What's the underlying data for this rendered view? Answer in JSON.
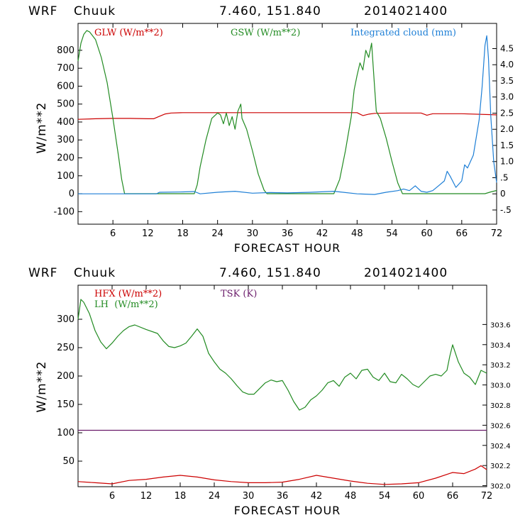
{
  "panels": [
    {
      "header": {
        "model": "WRF",
        "station": "Chuuk",
        "coords": "7.460, 151.840",
        "init": "2014021400"
      },
      "xlabel": "FORECAST HOUR",
      "ylabel": "W/m**2",
      "legend": [
        {
          "text": "GLW (W/m**2)",
          "color": "#cc0000"
        },
        {
          "text": "GSW (W/m**2)",
          "color": "#228b22"
        },
        {
          "text": "Integrated cloud (mm)",
          "color": "#1e7fd6"
        }
      ]
    },
    {
      "header": {
        "model": "WRF",
        "station": "Chuuk",
        "coords": "7.460, 151.840",
        "init": "2014021400"
      },
      "xlabel": "FORECAST HOUR",
      "ylabel": "W/m**2",
      "legend": [
        {
          "text": "HFX (W/m**2)",
          "color": "#cc0000"
        },
        {
          "text": "LH  (W/m**2)",
          "color": "#228b22"
        },
        {
          "text": "TSK (K)",
          "color": "#6a1b6a"
        }
      ]
    }
  ],
  "chart_data": [
    {
      "type": "line",
      "xlim": [
        0,
        72
      ],
      "ylim": [
        -170,
        950
      ],
      "y2lim": [
        -0.94,
        5.28
      ],
      "xticks": [
        6,
        12,
        18,
        24,
        30,
        36,
        42,
        48,
        54,
        60,
        66,
        72
      ],
      "yticks": [
        -100,
        0,
        100,
        200,
        300,
        400,
        500,
        600,
        700,
        800
      ],
      "y2ticks": [
        "-.5",
        "0",
        ".5",
        "1.0",
        "1.5",
        "2.0",
        "2.5",
        "3.0",
        "3.5",
        "4.0",
        "4.5"
      ],
      "y2tick_values": [
        -0.5,
        0,
        0.5,
        1.0,
        1.5,
        2.0,
        2.5,
        3.0,
        3.5,
        4.0,
        4.5
      ],
      "series": [
        {
          "name": "GLW (W/m**2)",
          "color": "#cc0000",
          "axis": "left",
          "points": [
            [
              0,
              415
            ],
            [
              3,
              418
            ],
            [
              6,
              420
            ],
            [
              9,
              420
            ],
            [
              12,
              418
            ],
            [
              13,
              418
            ],
            [
              14,
              432
            ],
            [
              15,
              445
            ],
            [
              16,
              450
            ],
            [
              18,
              452
            ],
            [
              24,
              452
            ],
            [
              30,
              452
            ],
            [
              36,
              452
            ],
            [
              42,
              452
            ],
            [
              48,
              452
            ],
            [
              49,
              436
            ],
            [
              50,
              444
            ],
            [
              51,
              448
            ],
            [
              54,
              450
            ],
            [
              57,
              450
            ],
            [
              59,
              450
            ],
            [
              60,
              438
            ],
            [
              61,
              446
            ],
            [
              66,
              446
            ],
            [
              72,
              440
            ]
          ]
        },
        {
          "name": "GSW (W/m**2)",
          "color": "#228b22",
          "axis": "left",
          "points": [
            [
              0,
              740
            ],
            [
              0.5,
              840
            ],
            [
              1,
              890
            ],
            [
              1.5,
              910
            ],
            [
              2,
              902
            ],
            [
              3,
              860
            ],
            [
              4,
              760
            ],
            [
              5,
              620
            ],
            [
              6,
              420
            ],
            [
              7,
              200
            ],
            [
              7.5,
              80
            ],
            [
              8,
              0
            ],
            [
              20,
              0
            ],
            [
              20.5,
              50
            ],
            [
              21,
              150
            ],
            [
              22,
              300
            ],
            [
              23,
              420
            ],
            [
              24,
              450
            ],
            [
              24.5,
              440
            ],
            [
              25,
              390
            ],
            [
              25.5,
              450
            ],
            [
              26,
              380
            ],
            [
              26.5,
              430
            ],
            [
              27,
              360
            ],
            [
              27.5,
              460
            ],
            [
              28,
              500
            ],
            [
              28.2,
              420
            ],
            [
              29,
              360
            ],
            [
              30,
              240
            ],
            [
              31,
              110
            ],
            [
              32,
              20
            ],
            [
              32.5,
              0
            ],
            [
              44,
              0
            ],
            [
              45,
              80
            ],
            [
              46,
              240
            ],
            [
              47,
              430
            ],
            [
              47.5,
              580
            ],
            [
              48,
              660
            ],
            [
              48.5,
              730
            ],
            [
              49,
              690
            ],
            [
              49.5,
              800
            ],
            [
              50,
              760
            ],
            [
              50.5,
              840
            ],
            [
              51,
              600
            ],
            [
              51.3,
              460
            ],
            [
              52,
              420
            ],
            [
              53,
              310
            ],
            [
              54,
              180
            ],
            [
              55,
              60
            ],
            [
              55.8,
              0
            ],
            [
              70,
              0
            ],
            [
              71,
              10
            ],
            [
              72,
              18
            ]
          ]
        },
        {
          "name": "Integrated cloud (mm)",
          "color": "#1e7fd6",
          "axis": "right",
          "points": [
            [
              0,
              0
            ],
            [
              6,
              0
            ],
            [
              12,
              0
            ],
            [
              13.5,
              0
            ],
            [
              14,
              0.05
            ],
            [
              18,
              0.06
            ],
            [
              20,
              0.07
            ],
            [
              21,
              0
            ],
            [
              24,
              0.05
            ],
            [
              27,
              0.08
            ],
            [
              30,
              0.02
            ],
            [
              33,
              0.04
            ],
            [
              36,
              0.03
            ],
            [
              40,
              0.05
            ],
            [
              44,
              0.08
            ],
            [
              45,
              0.06
            ],
            [
              48,
              0
            ],
            [
              51,
              -0.02
            ],
            [
              53,
              0.05
            ],
            [
              55,
              0.1
            ],
            [
              56,
              0.15
            ],
            [
              57,
              0.1
            ],
            [
              58,
              0.25
            ],
            [
              59,
              0.08
            ],
            [
              60,
              0.05
            ],
            [
              61,
              0.1
            ],
            [
              62,
              0.25
            ],
            [
              63,
              0.4
            ],
            [
              63.5,
              0.7
            ],
            [
              64,
              0.55
            ],
            [
              65,
              0.2
            ],
            [
              66,
              0.4
            ],
            [
              66.5,
              0.9
            ],
            [
              67,
              0.8
            ],
            [
              68,
              1.2
            ],
            [
              69,
              2.3
            ],
            [
              69.5,
              3.3
            ],
            [
              70,
              4.6
            ],
            [
              70.3,
              4.9
            ],
            [
              70.6,
              4.2
            ],
            [
              71,
              2.4
            ],
            [
              71.5,
              1.0
            ],
            [
              72,
              0.35
            ]
          ]
        }
      ]
    },
    {
      "type": "line",
      "xlim": [
        0,
        72
      ],
      "ylim": [
        5,
        360
      ],
      "y2lim": [
        301.99,
        303.99
      ],
      "xticks": [
        6,
        12,
        18,
        24,
        30,
        36,
        42,
        48,
        54,
        60,
        66,
        72
      ],
      "yticks": [
        50,
        100,
        150,
        200,
        250,
        300
      ],
      "y2ticks": [
        "302.0",
        "302.2",
        "302.4",
        "302.6",
        "302.8",
        "303.0",
        "303.2",
        "303.4",
        "303.6"
      ],
      "y2tick_values": [
        302.0,
        302.2,
        302.4,
        302.6,
        302.8,
        303.0,
        303.2,
        303.4,
        303.6
      ],
      "series": [
        {
          "name": "HFX (W/m**2)",
          "color": "#cc0000",
          "axis": "left",
          "points": [
            [
              0,
              14
            ],
            [
              3,
              12
            ],
            [
              6,
              10
            ],
            [
              9,
              16
            ],
            [
              12,
              18
            ],
            [
              15,
              22
            ],
            [
              18,
              25
            ],
            [
              21,
              22
            ],
            [
              24,
              17
            ],
            [
              27,
              14
            ],
            [
              30,
              12
            ],
            [
              33,
              12
            ],
            [
              36,
              13
            ],
            [
              39,
              18
            ],
            [
              42,
              25
            ],
            [
              45,
              20
            ],
            [
              48,
              15
            ],
            [
              51,
              11
            ],
            [
              54,
              9
            ],
            [
              57,
              10
            ],
            [
              60,
              12
            ],
            [
              63,
              20
            ],
            [
              66,
              30
            ],
            [
              68,
              28
            ],
            [
              70,
              36
            ],
            [
              71,
              42
            ],
            [
              72,
              35
            ]
          ]
        },
        {
          "name": "LH  (W/m**2)",
          "color": "#228b22",
          "axis": "left",
          "points": [
            [
              0,
              300
            ],
            [
              0.5,
              335
            ],
            [
              1,
              330
            ],
            [
              2,
              310
            ],
            [
              3,
              280
            ],
            [
              4,
              260
            ],
            [
              5,
              248
            ],
            [
              6,
              258
            ],
            [
              7,
              270
            ],
            [
              8,
              280
            ],
            [
              9,
              287
            ],
            [
              10,
              290
            ],
            [
              12,
              282
            ],
            [
              14,
              275
            ],
            [
              15,
              262
            ],
            [
              16,
              252
            ],
            [
              17,
              250
            ],
            [
              18,
              253
            ],
            [
              19,
              258
            ],
            [
              20,
              270
            ],
            [
              21,
              283
            ],
            [
              22,
              270
            ],
            [
              23,
              240
            ],
            [
              24,
              225
            ],
            [
              25,
              212
            ],
            [
              26,
              205
            ],
            [
              27,
              195
            ],
            [
              28,
              183
            ],
            [
              29,
              172
            ],
            [
              30,
              168
            ],
            [
              31,
              168
            ],
            [
              32,
              178
            ],
            [
              33,
              188
            ],
            [
              34,
              193
            ],
            [
              35,
              190
            ],
            [
              36,
              192
            ],
            [
              37,
              175
            ],
            [
              38,
              155
            ],
            [
              39,
              140
            ],
            [
              40,
              145
            ],
            [
              41,
              158
            ],
            [
              42,
              165
            ],
            [
              43,
              175
            ],
            [
              44,
              188
            ],
            [
              45,
              192
            ],
            [
              46,
              182
            ],
            [
              47,
              198
            ],
            [
              48,
              205
            ],
            [
              49,
              195
            ],
            [
              50,
              210
            ],
            [
              51,
              212
            ],
            [
              52,
              198
            ],
            [
              53,
              192
            ],
            [
              54,
              205
            ],
            [
              55,
              190
            ],
            [
              56,
              188
            ],
            [
              57,
              203
            ],
            [
              58,
              195
            ],
            [
              59,
              185
            ],
            [
              60,
              180
            ],
            [
              61,
              190
            ],
            [
              62,
              200
            ],
            [
              63,
              203
            ],
            [
              64,
              200
            ],
            [
              65,
              210
            ],
            [
              65.5,
              235
            ],
            [
              66,
              255
            ],
            [
              67,
              225
            ],
            [
              68,
              205
            ],
            [
              69,
              198
            ],
            [
              70,
              185
            ],
            [
              71,
              210
            ],
            [
              72,
              205
            ]
          ]
        },
        {
          "name": "TSK (K)",
          "color": "#6a1b6a",
          "axis": "right",
          "points": [
            [
              0,
              302.55
            ],
            [
              72,
              302.55
            ]
          ]
        }
      ]
    }
  ]
}
